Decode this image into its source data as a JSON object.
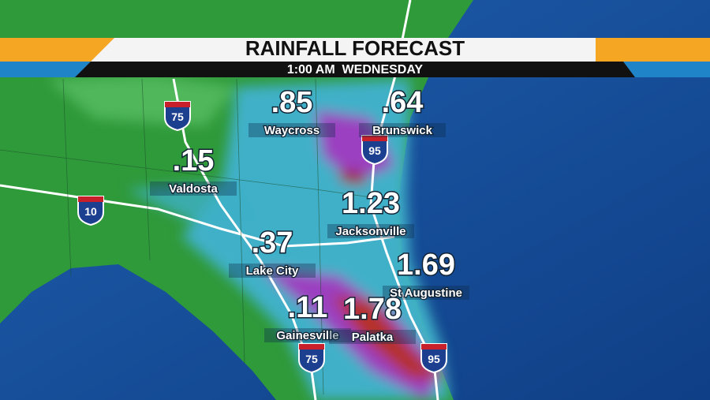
{
  "header": {
    "title": "RAINFALL FORECAST",
    "subtitle": "1:00 AM  WEDNESDAY"
  },
  "cities": [
    {
      "name": "Waycross",
      "value": ".85"
    },
    {
      "name": "Brunswick",
      "value": ".64"
    },
    {
      "name": "Valdosta",
      "value": ".15"
    },
    {
      "name": "Jacksonville",
      "value": "1.23"
    },
    {
      "name": "Lake City",
      "value": ".37"
    },
    {
      "name": "St Augustine",
      "value": "1.69"
    },
    {
      "name": "Gainesville",
      "value": ".11"
    },
    {
      "name": "Palatka",
      "value": "1.78"
    }
  ],
  "shields": [
    {
      "label": "75"
    },
    {
      "label": "95"
    },
    {
      "label": "10"
    },
    {
      "label": "75"
    },
    {
      "label": "95"
    }
  ]
}
